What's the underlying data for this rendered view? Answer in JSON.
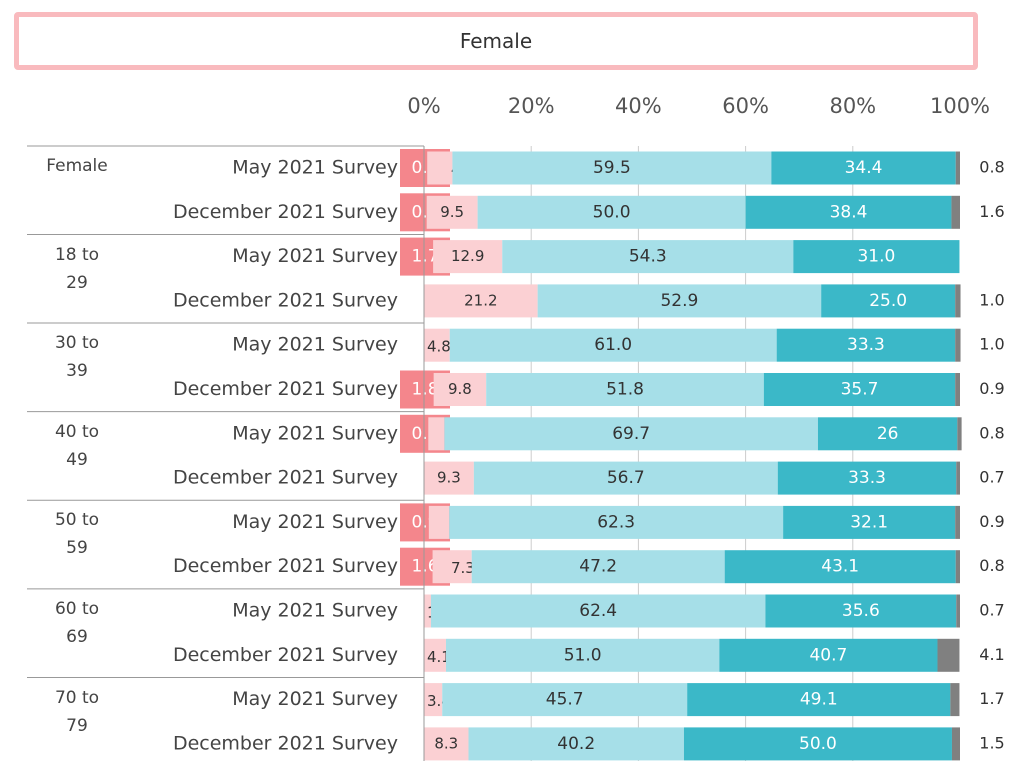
{
  "chart_data": {
    "type": "stacked-bar-horizontal",
    "title": "Female",
    "groups": [
      "Female",
      "18 to 29",
      "30 to 39",
      "40 to 49",
      "50 to 59",
      "60 to 69",
      "70 to 79"
    ],
    "categories": [
      "May 2021 Survey",
      "December 2021 Survey",
      "May 2021 Survey",
      "December 2021 Survey",
      "May 2021 Survey",
      "December 2021 Survey",
      "May 2021 Survey",
      "December 2021 Survey",
      "May 2021 Survey",
      "December 2021 Survey",
      "May 2021 Survey",
      "December 2021 Survey",
      "May 2021 Survey",
      "December 2021 Survey"
    ],
    "xlim": [
      0,
      100
    ],
    "xticks": [
      {
        "value": 0,
        "label": "0%"
      },
      {
        "value": 20,
        "label": "20%"
      },
      {
        "value": 40,
        "label": "40%"
      },
      {
        "value": 60,
        "label": "60%"
      },
      {
        "value": 80,
        "label": "80%"
      },
      {
        "value": 100,
        "label": "100%"
      }
    ],
    "grid": true,
    "series": [
      {
        "color": "#f4868c",
        "values": [
          0.6,
          0.5,
          1.7,
          null,
          null,
          1.8,
          0.8,
          null,
          0.9,
          1.6,
          null,
          null,
          null,
          null
        ],
        "value_labels": [
          "0.6",
          "0.5",
          "1.7",
          null,
          null,
          "1.8",
          "0.8",
          null,
          "0.9",
          "1.6",
          null,
          null,
          null,
          null
        ]
      },
      {
        "color": "#fbd0d3",
        "values": [
          4.7,
          9.5,
          12.9,
          21.2,
          4.8,
          9.8,
          3.0,
          9.3,
          3.8,
          7.3,
          1.3,
          4.1,
          3.4,
          8.3
        ],
        "value_labels": [
          "4.7",
          "9.5",
          "12.9",
          "21.2",
          "4.8",
          "9.8",
          "3.0",
          "9.3",
          "3.8",
          "7.3",
          "1.3",
          "4.1",
          "3.4",
          "8.3"
        ]
      },
      {
        "color": "#a6dfe8",
        "values": [
          59.5,
          50.0,
          54.3,
          52.9,
          61.0,
          51.8,
          69.7,
          56.7,
          62.3,
          47.2,
          62.4,
          51.0,
          45.7,
          40.2
        ],
        "value_labels": [
          "59.5",
          "50.0",
          "54.3",
          "52.9",
          "61.0",
          "51.8",
          "69.7",
          "56.7",
          "62.3",
          "47.2",
          "62.4",
          "51.0",
          "45.7",
          "40.2"
        ]
      },
      {
        "color": "#3bb8c8",
        "values": [
          34.4,
          38.4,
          31.0,
          25.0,
          33.3,
          35.7,
          26,
          33.3,
          32.1,
          43.1,
          35.6,
          40.7,
          49.1,
          50.0
        ],
        "value_labels": [
          "34.4",
          "38.4",
          "31.0",
          "25.0",
          "33.3",
          "35.7",
          "26",
          "33.3",
          "32.1",
          "43.1",
          "35.6",
          "40.7",
          "49.1",
          "50.0"
        ]
      },
      {
        "color": "#808080",
        "values": [
          0.8,
          1.6,
          null,
          1.0,
          1.0,
          0.9,
          0.8,
          0.7,
          0.9,
          0.8,
          0.7,
          4.1,
          1.7,
          1.5
        ],
        "value_labels": [
          "0.8",
          "1.6",
          null,
          "1.0",
          "1.0",
          "0.9",
          "0.8",
          "0.7",
          "0.9",
          "0.8",
          "0.7",
          "4.1",
          "1.7",
          "1.5"
        ]
      }
    ]
  }
}
